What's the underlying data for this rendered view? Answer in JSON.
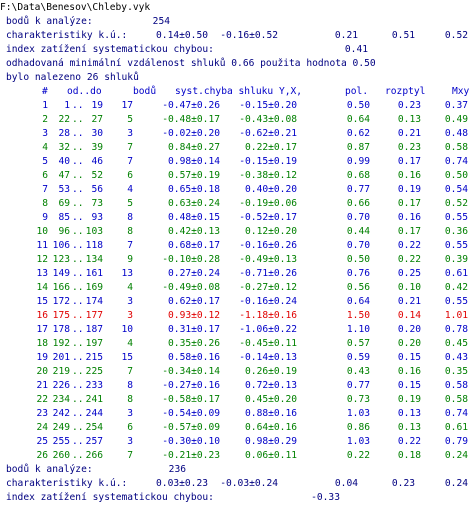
{
  "path": "F:\\Data\\Benesov\\Chleby.vyk",
  "summary": {
    "points_label": "bodů k analýze:",
    "points": "254",
    "char_label": "charakteristiky k.ú.:",
    "char_values": [
      "0.14±0.50",
      "-0.16±0.52",
      "0.21",
      "0.51",
      "0.52"
    ],
    "index_label": "index zatížení systematickou chybou:",
    "index": "0.41",
    "distance_note": "odhadovaná minimální vzdálenost shluků 0.66 použita hodnota 0.50",
    "clusters_note": "bylo nalezeno 26 shluků"
  },
  "table": {
    "columns": [
      "#",
      "od..do",
      "bodů",
      "syst.chyba shluku Y,X,",
      "pol.",
      "rozptyl",
      "Mxy"
    ],
    "row_colors": [
      "#0000c8",
      "#008000",
      "#0000c8",
      "#008000",
      "#0000c8",
      "#008000",
      "#0000c8",
      "#008000",
      "#0000c8",
      "#008000",
      "#0000c8",
      "#008000",
      "#0000c8",
      "#008000",
      "#0000c8",
      "#e00000",
      "#0000c8",
      "#008000",
      "#0000c8",
      "#008000",
      "#0000c8",
      "#008000",
      "#0000c8",
      "#008000",
      "#0000c8",
      "#008000"
    ],
    "rows": [
      [
        "1",
        "1",
        "..",
        "19",
        "17",
        "-0.47±0.26",
        "-0.15±0.20",
        "0.50",
        "0.23",
        "0.37"
      ],
      [
        "2",
        "22",
        "..",
        "27",
        "5",
        "-0.48±0.17",
        "-0.43±0.08",
        "0.64",
        "0.13",
        "0.49"
      ],
      [
        "3",
        "28",
        "..",
        "30",
        "3",
        "-0.02±0.20",
        "-0.62±0.21",
        "0.62",
        "0.21",
        "0.48"
      ],
      [
        "4",
        "32",
        "..",
        "39",
        "7",
        "0.84±0.27",
        "0.22±0.17",
        "0.87",
        "0.23",
        "0.58"
      ],
      [
        "5",
        "40",
        "..",
        "46",
        "7",
        "0.98±0.14",
        "-0.15±0.19",
        "0.99",
        "0.17",
        "0.74"
      ],
      [
        "6",
        "47",
        "..",
        "52",
        "6",
        "0.57±0.19",
        "-0.38±0.12",
        "0.68",
        "0.16",
        "0.50"
      ],
      [
        "7",
        "53",
        "..",
        "56",
        "4",
        "0.65±0.18",
        "0.40±0.20",
        "0.77",
        "0.19",
        "0.54"
      ],
      [
        "8",
        "69",
        "..",
        "73",
        "5",
        "0.63±0.24",
        "-0.19±0.06",
        "0.66",
        "0.17",
        "0.52"
      ],
      [
        "9",
        "85",
        "..",
        "93",
        "8",
        "0.48±0.15",
        "-0.52±0.17",
        "0.70",
        "0.16",
        "0.55"
      ],
      [
        "10",
        "96",
        "..",
        "103",
        "8",
        "0.42±0.13",
        "0.12±0.20",
        "0.44",
        "0.17",
        "0.36"
      ],
      [
        "11",
        "106",
        "..",
        "118",
        "7",
        "0.68±0.17",
        "-0.16±0.26",
        "0.70",
        "0.22",
        "0.55"
      ],
      [
        "12",
        "123",
        "..",
        "134",
        "9",
        "-0.10±0.28",
        "-0.49±0.13",
        "0.50",
        "0.22",
        "0.39"
      ],
      [
        "13",
        "149",
        "..",
        "161",
        "13",
        "0.27±0.24",
        "-0.71±0.26",
        "0.76",
        "0.25",
        "0.61"
      ],
      [
        "14",
        "166",
        "..",
        "169",
        "4",
        "-0.49±0.08",
        "-0.27±0.12",
        "0.56",
        "0.10",
        "0.42"
      ],
      [
        "15",
        "172",
        "..",
        "174",
        "3",
        "0.62±0.17",
        "-0.16±0.24",
        "0.64",
        "0.21",
        "0.55"
      ],
      [
        "16",
        "175",
        "..",
        "177",
        "3",
        "0.93±0.12",
        "-1.18±0.16",
        "1.50",
        "0.14",
        "1.01"
      ],
      [
        "17",
        "178",
        "..",
        "187",
        "10",
        "0.31±0.17",
        "-1.06±0.22",
        "1.10",
        "0.20",
        "0.78"
      ],
      [
        "18",
        "192",
        "..",
        "197",
        "4",
        "0.35±0.26",
        "-0.45±0.11",
        "0.57",
        "0.20",
        "0.45"
      ],
      [
        "19",
        "201",
        "..",
        "215",
        "15",
        "0.58±0.16",
        "-0.14±0.13",
        "0.59",
        "0.15",
        "0.43"
      ],
      [
        "20",
        "219",
        "..",
        "225",
        "7",
        "-0.34±0.14",
        "0.26±0.19",
        "0.43",
        "0.16",
        "0.35"
      ],
      [
        "21",
        "226",
        "..",
        "233",
        "8",
        "-0.27±0.16",
        "0.72±0.13",
        "0.77",
        "0.15",
        "0.58"
      ],
      [
        "22",
        "234",
        "..",
        "241",
        "8",
        "-0.58±0.17",
        "0.45±0.20",
        "0.73",
        "0.19",
        "0.58"
      ],
      [
        "23",
        "242",
        "..",
        "244",
        "3",
        "-0.54±0.09",
        "0.88±0.16",
        "1.03",
        "0.13",
        "0.74"
      ],
      [
        "24",
        "249",
        "..",
        "254",
        "6",
        "-0.57±0.09",
        "0.64±0.16",
        "0.86",
        "0.13",
        "0.61"
      ],
      [
        "25",
        "255",
        "..",
        "257",
        "3",
        "-0.30±0.10",
        "0.98±0.29",
        "1.03",
        "0.22",
        "0.79"
      ],
      [
        "26",
        "260",
        "..",
        "266",
        "7",
        "-0.21±0.23",
        "0.06±0.11",
        "0.22",
        "0.18",
        "0.24"
      ]
    ]
  },
  "footer": {
    "points_label": "bodů k analýze:",
    "points": "236",
    "char_label": "charakteristiky k.ú.:",
    "char_values": [
      "0.03±0.23",
      "-0.03±0.24",
      "0.04",
      "0.23",
      "0.24"
    ],
    "index_label": "index zatížení systematickou chybou:",
    "index": "-0.33"
  }
}
